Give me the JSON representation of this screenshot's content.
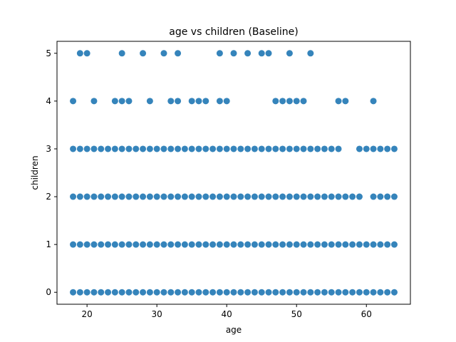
{
  "chart_data": {
    "type": "scatter",
    "title": "age vs children (Baseline)",
    "xlabel": "age",
    "ylabel": "children",
    "xlim": [
      15.7,
      66.3
    ],
    "ylim": [
      -0.25,
      5.25
    ],
    "xticks": [
      20,
      30,
      40,
      50,
      60
    ],
    "yticks": [
      0,
      1,
      2,
      3,
      4,
      5
    ],
    "grid": false,
    "legend": "none",
    "marker_color": "#1f77b4",
    "series": [
      {
        "rows": [
          {
            "y": 5,
            "x": [
              19,
              20,
              25,
              28,
              31,
              33,
              39,
              41,
              43,
              45,
              46,
              49,
              52
            ]
          },
          {
            "y": 4,
            "x": [
              18,
              21,
              24,
              25,
              26,
              29,
              32,
              33,
              35,
              36,
              37,
              39,
              40,
              47,
              48,
              49,
              50,
              51,
              56,
              57,
              61
            ]
          },
          {
            "y": 3,
            "x": [
              18,
              19,
              20,
              21,
              22,
              23,
              24,
              25,
              26,
              27,
              28,
              29,
              30,
              31,
              32,
              33,
              34,
              35,
              36,
              37,
              38,
              39,
              40,
              41,
              42,
              43,
              44,
              45,
              46,
              47,
              48,
              49,
              50,
              51,
              52,
              53,
              54,
              55,
              56,
              59,
              60,
              61,
              62,
              63,
              64
            ]
          },
          {
            "y": 2,
            "x": [
              18,
              19,
              20,
              21,
              22,
              23,
              24,
              25,
              26,
              27,
              28,
              29,
              30,
              31,
              32,
              33,
              34,
              35,
              36,
              37,
              38,
              39,
              40,
              41,
              42,
              43,
              44,
              45,
              46,
              47,
              48,
              49,
              50,
              51,
              52,
              53,
              54,
              55,
              56,
              57,
              58,
              59,
              61,
              62,
              63,
              64
            ]
          },
          {
            "y": 1,
            "x": [
              18,
              19,
              20,
              21,
              22,
              23,
              24,
              25,
              26,
              27,
              28,
              29,
              30,
              31,
              32,
              33,
              34,
              35,
              36,
              37,
              38,
              39,
              40,
              41,
              42,
              43,
              44,
              45,
              46,
              47,
              48,
              49,
              50,
              51,
              52,
              53,
              54,
              55,
              56,
              57,
              58,
              59,
              60,
              61,
              62,
              63,
              64
            ]
          },
          {
            "y": 0,
            "x": [
              18,
              19,
              20,
              21,
              22,
              23,
              24,
              25,
              26,
              27,
              28,
              29,
              30,
              31,
              32,
              33,
              34,
              35,
              36,
              37,
              38,
              39,
              40,
              41,
              42,
              43,
              44,
              45,
              46,
              47,
              48,
              49,
              50,
              51,
              52,
              53,
              54,
              55,
              56,
              57,
              58,
              59,
              60,
              61,
              62,
              63,
              64
            ]
          }
        ]
      }
    ]
  }
}
